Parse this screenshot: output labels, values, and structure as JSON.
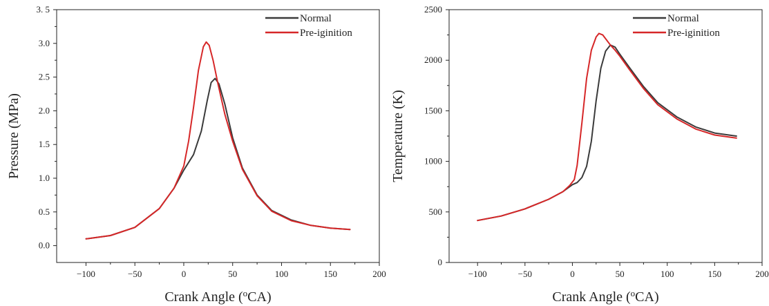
{
  "chart_data": [
    {
      "type": "line",
      "xlabel": "Crank Angle (",
      "xlabel_sup": "o",
      "xlabel_end": "CA)",
      "ylabel": "Pressure (MPa)",
      "xlim": [
        -130,
        200
      ],
      "ylim": [
        -0.25,
        3.5
      ],
      "xticks": [
        -100,
        -50,
        0,
        50,
        100,
        150,
        200
      ],
      "yticks": [
        0.0,
        0.5,
        1.0,
        1.5,
        2.0,
        2.5,
        3.0,
        3.5
      ],
      "ytick_labels": [
        "0.0",
        "0.5",
        "1.0",
        "1.5",
        "2.0",
        "2.5",
        "3.0",
        "3. 5"
      ],
      "grid": false,
      "legend_position": "top-right",
      "series": [
        {
          "name": "Normal",
          "color": "#3a3a3a",
          "x": [
            -100,
            -75,
            -50,
            -25,
            -10,
            0,
            10,
            18,
            24,
            28,
            32,
            36,
            42,
            50,
            60,
            75,
            90,
            110,
            130,
            150,
            170
          ],
          "y": [
            0.1,
            0.15,
            0.27,
            0.55,
            0.85,
            1.12,
            1.35,
            1.7,
            2.15,
            2.42,
            2.48,
            2.4,
            2.1,
            1.6,
            1.15,
            0.75,
            0.52,
            0.38,
            0.3,
            0.26,
            0.24
          ]
        },
        {
          "name": "Pre-iginition",
          "color": "#d62728",
          "x": [
            -100,
            -75,
            -50,
            -25,
            -10,
            0,
            5,
            10,
            15,
            20,
            23,
            26,
            30,
            35,
            42,
            50,
            60,
            75,
            90,
            110,
            130,
            150,
            170
          ],
          "y": [
            0.1,
            0.15,
            0.27,
            0.55,
            0.85,
            1.18,
            1.55,
            2.05,
            2.6,
            2.95,
            3.02,
            2.97,
            2.75,
            2.4,
            1.95,
            1.55,
            1.13,
            0.74,
            0.51,
            0.37,
            0.3,
            0.26,
            0.24
          ]
        }
      ]
    },
    {
      "type": "line",
      "xlabel": "Crank Angle (",
      "xlabel_sup": "o",
      "xlabel_end": "CA)",
      "ylabel": "Temperature (K)",
      "xlim": [
        -130,
        200
      ],
      "ylim": [
        0,
        2500
      ],
      "xticks": [
        -100,
        -50,
        0,
        50,
        100,
        150,
        200
      ],
      "yticks": [
        0,
        500,
        1000,
        1500,
        2000,
        2500
      ],
      "ytick_labels": [
        "0",
        "500",
        "1000",
        "1500",
        "2000",
        "2500"
      ],
      "grid": false,
      "legend_position": "top-right",
      "series": [
        {
          "name": "Normal",
          "color": "#3a3a3a",
          "x": [
            -100,
            -75,
            -50,
            -25,
            -10,
            0,
            5,
            10,
            15,
            20,
            25,
            30,
            35,
            40,
            45,
            50,
            60,
            75,
            90,
            110,
            130,
            150,
            173
          ],
          "y": [
            415,
            460,
            530,
            625,
            700,
            770,
            790,
            840,
            950,
            1200,
            1600,
            1920,
            2090,
            2150,
            2130,
            2060,
            1930,
            1740,
            1580,
            1440,
            1340,
            1280,
            1250
          ]
        },
        {
          "name": "Pre-iginition",
          "color": "#d62728",
          "x": [
            -100,
            -75,
            -50,
            -25,
            -10,
            -3,
            2,
            5,
            10,
            15,
            20,
            25,
            28,
            32,
            36,
            40,
            45,
            50,
            60,
            75,
            90,
            110,
            130,
            150,
            173
          ],
          "y": [
            415,
            460,
            530,
            625,
            700,
            760,
            820,
            960,
            1380,
            1820,
            2100,
            2230,
            2265,
            2250,
            2200,
            2150,
            2100,
            2040,
            1910,
            1720,
            1560,
            1420,
            1320,
            1260,
            1230
          ]
        }
      ]
    }
  ]
}
